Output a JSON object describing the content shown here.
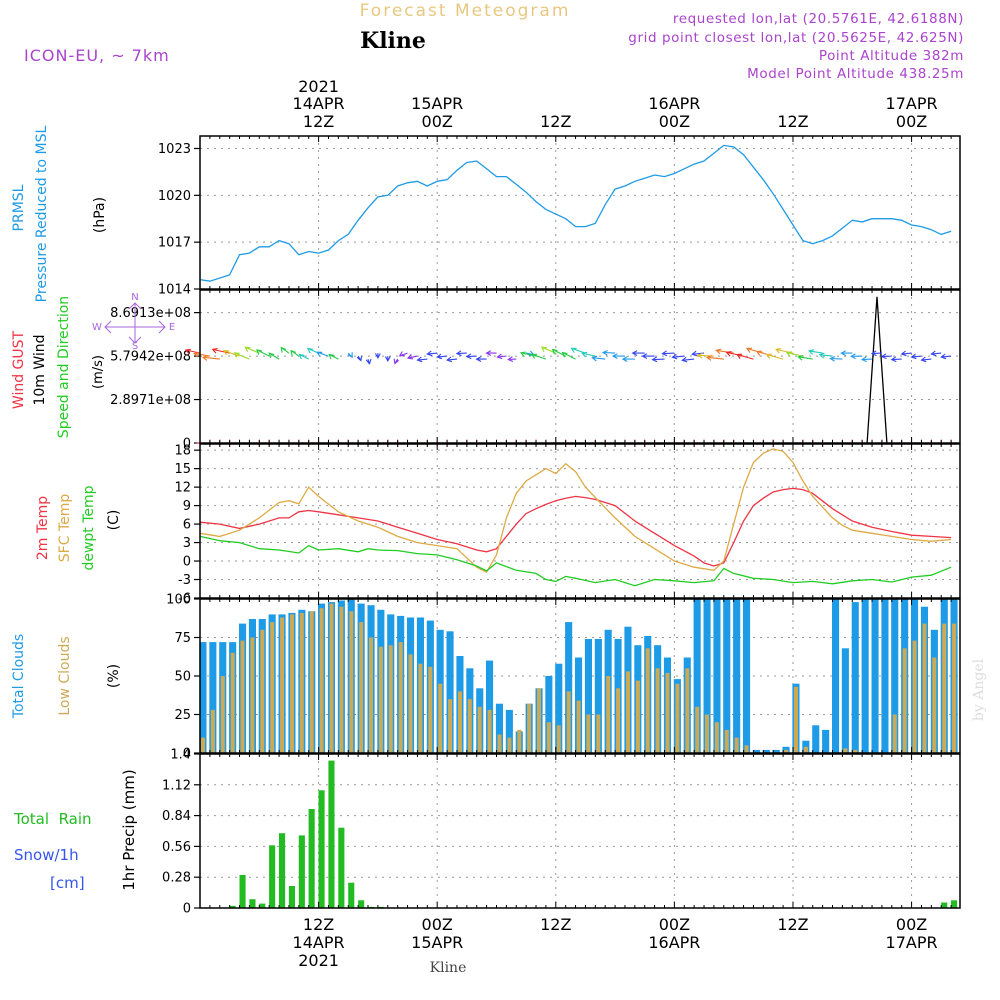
{
  "header": {
    "title": "Forecast Meteogram",
    "station": "Kline",
    "model": "ICON-EU, ~ 7km",
    "requested": "requested lon,lat (20.5761E, 42.6188N)",
    "grid_point": "grid point closest lon,lat (20.5625E, 42.625N)",
    "point_alt": "Point Altitude 382m",
    "model_alt": "Model Point Altitude 438.25m",
    "footer_station": "Kline",
    "credit": "by Angel"
  },
  "colors": {
    "pressure": "#1e9be6",
    "gust": "#ee3344",
    "wind": "#000000",
    "wind_dir": "#22cc22",
    "temp": "#ee3344",
    "sfc": "#ddaa44",
    "dewpt": "#22cc22",
    "total_clouds": "#1e9be6",
    "low_clouds": "#ccaa55",
    "rain": "#22bb22",
    "snow": "#3355ee",
    "compass": "#aa66dd",
    "header_purple": "#aa44cc",
    "title_color": "#e8c880",
    "grid": "#999999"
  },
  "time_axis": {
    "top_ticks": [
      {
        "h": 12,
        "line1": "2021",
        "line2": "14APR",
        "line3": "12Z"
      },
      {
        "h": 24,
        "line1": "",
        "line2": "15APR",
        "line3": "00Z"
      },
      {
        "h": 36,
        "line1": "",
        "line2": "",
        "line3": "12Z"
      },
      {
        "h": 48,
        "line1": "",
        "line2": "16APR",
        "line3": "00Z"
      },
      {
        "h": 60,
        "line1": "",
        "line2": "",
        "line3": "12Z"
      },
      {
        "h": 72,
        "line1": "",
        "line2": "17APR",
        "line3": "00Z"
      }
    ],
    "bottom_ticks": [
      {
        "h": 12,
        "line1": "12Z",
        "line2": "14APR",
        "line3": "2021"
      },
      {
        "h": 24,
        "line1": "00Z",
        "line2": "15APR",
        "line3": ""
      },
      {
        "h": 36,
        "line1": "12Z",
        "line2": "",
        "line3": ""
      },
      {
        "h": 48,
        "line1": "00Z",
        "line2": "16APR",
        "line3": ""
      },
      {
        "h": 60,
        "line1": "12Z",
        "line2": "",
        "line3": ""
      },
      {
        "h": 72,
        "line1": "00Z",
        "line2": "17APR",
        "line3": ""
      }
    ]
  },
  "chart_data": [
    {
      "type": "line",
      "title": "PRMSL Pressure Reduced to MSL",
      "label_line1": "PRMSL",
      "label_line2": "Pressure Reduced to MSL",
      "ylabel": "(hPa)",
      "ylim": [
        1014,
        1023.8
      ],
      "yticks": [
        1014,
        1017,
        1020,
        1023
      ],
      "x_hours_start": 0,
      "x_hours_end": 77,
      "series": [
        {
          "name": "PRMSL",
          "x": [
            0,
            1,
            3,
            4,
            5,
            6,
            7,
            8,
            9,
            10,
            11,
            12,
            13,
            14,
            15,
            16,
            17,
            18,
            19,
            20,
            21,
            22,
            23,
            24,
            25,
            26,
            27,
            28,
            29,
            30,
            31,
            32,
            33,
            34,
            35,
            36,
            37,
            38,
            39,
            40,
            41,
            42,
            43,
            44,
            45,
            46,
            47,
            48,
            49,
            50,
            51,
            52,
            53,
            54,
            55,
            56,
            57,
            58,
            59,
            60,
            61,
            62,
            63,
            64,
            65,
            66,
            67,
            68,
            69,
            70,
            71,
            72,
            73,
            74,
            75,
            76
          ],
          "values": [
            1014.6,
            1014.5,
            1014.9,
            1016.2,
            1016.3,
            1016.7,
            1016.7,
            1017.1,
            1016.9,
            1016.2,
            1016.4,
            1016.3,
            1016.5,
            1017.1,
            1017.5,
            1018.4,
            1019.2,
            1019.9,
            1020.0,
            1020.6,
            1020.8,
            1020.9,
            1020.6,
            1020.9,
            1021.0,
            1021.6,
            1022.1,
            1022.2,
            1021.7,
            1021.2,
            1021.2,
            1020.7,
            1020.2,
            1019.6,
            1019.1,
            1018.8,
            1018.5,
            1018.0,
            1018.0,
            1018.2,
            1019.4,
            1020.4,
            1020.6,
            1020.9,
            1021.1,
            1021.3,
            1021.2,
            1021.4,
            1021.7,
            1022.0,
            1022.2,
            1022.7,
            1023.2,
            1023.1,
            1022.6,
            1021.8,
            1021.0,
            1020.1,
            1019.1,
            1018.1,
            1017.1,
            1016.9,
            1017.1,
            1017.4,
            1017.9,
            1018.4,
            1018.3,
            1018.5,
            1018.5,
            1018.5,
            1018.4,
            1018.1,
            1018.0,
            1017.8,
            1017.5,
            1017.7
          ]
        }
      ]
    },
    {
      "type": "line",
      "title": "Wind GUST / 10m Wind Speed and Direction",
      "label_gust": "Wind GUST",
      "label_wind": "10m Wind",
      "label_dir": "Speed and Direction",
      "ylabel": "(m/s)",
      "ylim": [
        0,
        1020000000.0
      ],
      "ytick_labels": [
        "0",
        "2.8971e+08",
        "5.7942e+08",
        "8.6913e+08"
      ],
      "ytick_values": [
        0,
        289710000,
        579420000,
        869130000
      ],
      "compass": {
        "n": "N",
        "s": "S",
        "e": "E",
        "w": "W"
      },
      "series": [
        {
          "name": "10m Wind spike",
          "x": [
            67.5,
            68.5,
            69.5
          ],
          "values": [
            0,
            975000000,
            0
          ]
        },
        {
          "name": "Wind GUST",
          "note": "plus markers along zero line every hour",
          "value": 0
        }
      ],
      "wind_barbs_note": "wind direction arrows coloured by speed, drawn near the 5.8e+08 level"
    },
    {
      "type": "line",
      "title": "2m Temp / SFC Temp / dewpt Temp",
      "label_line1": "2m Temp",
      "label_line2": "SFC Temp",
      "label_line3": "dewpt Temp",
      "ylabel": "(C)",
      "ylim": [
        -6,
        19
      ],
      "yticks": [
        -6,
        -3,
        0,
        3,
        6,
        9,
        12,
        15,
        18
      ],
      "series": [
        {
          "name": "2m Temp",
          "x": [
            0,
            2,
            4,
            6,
            8,
            9,
            10,
            11,
            12,
            14,
            16,
            18,
            20,
            22,
            24,
            26,
            27,
            28,
            29,
            30,
            31,
            32,
            33,
            34,
            35,
            36,
            37,
            38,
            39,
            40,
            42,
            44,
            46,
            48,
            50,
            51,
            52,
            53,
            54,
            55,
            56,
            57,
            58,
            59,
            60,
            61,
            62,
            64,
            66,
            68,
            70,
            72,
            74,
            76
          ],
          "values": [
            6.3,
            6.0,
            5.3,
            6.0,
            7.0,
            7.0,
            8.0,
            8.2,
            8.0,
            7.5,
            7.0,
            6.5,
            5.5,
            4.5,
            3.5,
            2.8,
            2.3,
            1.8,
            1.5,
            2.0,
            4.0,
            6.0,
            7.7,
            8.5,
            9.2,
            9.8,
            10.2,
            10.5,
            10.3,
            10.0,
            9.0,
            6.5,
            4.5,
            2.5,
            0.8,
            -0.3,
            -0.8,
            -0.3,
            3.0,
            6.5,
            9.0,
            10.2,
            11.2,
            11.6,
            11.8,
            11.6,
            11.0,
            8.5,
            6.5,
            5.5,
            4.8,
            4.2,
            4.0,
            3.8
          ]
        },
        {
          "name": "SFC Temp",
          "x": [
            0,
            2,
            4,
            6,
            8,
            9,
            10,
            11,
            12,
            14,
            16,
            18,
            20,
            22,
            24,
            26,
            28,
            29,
            30,
            31,
            32,
            33,
            34,
            35,
            36,
            37,
            38,
            39,
            40,
            42,
            44,
            46,
            48,
            50,
            52,
            53,
            54,
            55,
            56,
            57,
            58,
            59,
            60,
            61,
            62,
            64,
            65,
            66,
            68,
            70,
            72,
            74,
            76
          ],
          "values": [
            4.5,
            4.0,
            5.0,
            7.0,
            9.5,
            9.8,
            9.3,
            12.0,
            10.5,
            8.0,
            6.5,
            5.5,
            4.0,
            3.0,
            2.5,
            2.0,
            -1.0,
            -1.8,
            1.0,
            7.0,
            11.0,
            13.0,
            14.0,
            15.0,
            14.2,
            15.8,
            14.5,
            12.0,
            10.3,
            7.0,
            4.0,
            2.0,
            0.0,
            -1.0,
            -1.5,
            0.0,
            6.0,
            12.0,
            16.0,
            17.5,
            18.2,
            17.8,
            16.0,
            13.0,
            10.5,
            7.0,
            5.8,
            5.0,
            4.5,
            4.0,
            3.5,
            3.2,
            3.5
          ]
        },
        {
          "name": "dewpt Temp",
          "x": [
            0,
            2,
            4,
            6,
            8,
            10,
            11,
            12,
            14,
            16,
            17,
            18,
            20,
            22,
            24,
            26,
            28,
            29,
            30,
            32,
            34,
            35,
            36,
            37,
            38,
            40,
            42,
            44,
            46,
            48,
            50,
            52,
            53,
            54,
            56,
            58,
            60,
            62,
            64,
            66,
            68,
            70,
            72,
            74,
            76
          ],
          "values": [
            4.0,
            3.3,
            3.0,
            2.0,
            1.8,
            1.3,
            2.5,
            1.8,
            2.0,
            1.5,
            2.0,
            1.8,
            1.7,
            1.2,
            1.0,
            0.2,
            -0.8,
            -1.6,
            -0.3,
            -1.5,
            -2.0,
            -3.0,
            -3.3,
            -2.5,
            -2.8,
            -3.5,
            -3.0,
            -4.0,
            -3.0,
            -3.2,
            -3.5,
            -3.2,
            -1.2,
            -2.0,
            -2.8,
            -3.0,
            -3.5,
            -3.3,
            -3.7,
            -3.2,
            -3.0,
            -3.4,
            -2.6,
            -2.3,
            -1.0
          ]
        }
      ]
    },
    {
      "type": "bar",
      "title": "Total Clouds / Low Clouds",
      "label_line1": "Total Clouds",
      "label_line2": "Low Clouds",
      "ylabel": "(%)",
      "ylim": [
        0,
        100
      ],
      "yticks": [
        0,
        25,
        50,
        75,
        100
      ],
      "x_hours": [
        0,
        1,
        2,
        3,
        4,
        5,
        6,
        7,
        8,
        9,
        10,
        11,
        12,
        13,
        14,
        15,
        16,
        17,
        18,
        19,
        20,
        21,
        22,
        23,
        24,
        25,
        26,
        27,
        28,
        29,
        30,
        31,
        32,
        33,
        34,
        35,
        36,
        37,
        38,
        39,
        40,
        41,
        42,
        43,
        44,
        45,
        46,
        47,
        48,
        49,
        50,
        51,
        52,
        53,
        54,
        55,
        56,
        57,
        58,
        59,
        60,
        61,
        62,
        63,
        64,
        65,
        66,
        67,
        68,
        69,
        70,
        71,
        72,
        73,
        74,
        75,
        76
      ],
      "series": [
        {
          "name": "Total Clouds",
          "values": [
            72,
            72,
            72,
            72,
            84,
            87,
            87,
            90,
            90,
            91,
            93,
            92,
            97,
            98,
            99,
            100,
            97,
            96,
            93,
            90,
            89,
            88,
            88,
            86,
            80,
            79,
            63,
            55,
            42,
            60,
            32,
            28,
            14,
            32,
            42,
            50,
            58,
            85,
            62,
            74,
            74,
            80,
            74,
            82,
            70,
            76,
            70,
            62,
            48,
            62,
            100,
            100,
            100,
            100,
            100,
            100,
            2,
            2,
            2,
            4,
            45,
            8,
            18,
            15,
            100,
            68,
            98,
            100,
            100,
            100,
            100,
            100,
            100,
            95,
            80,
            100,
            100
          ]
        },
        {
          "name": "Low Clouds",
          "values": [
            10,
            28,
            50,
            65,
            73,
            75,
            80,
            85,
            88,
            90,
            91,
            92,
            94,
            97,
            95,
            92,
            85,
            75,
            69,
            70,
            72,
            64,
            58,
            56,
            45,
            35,
            40,
            35,
            30,
            28,
            12,
            10,
            15,
            32,
            42,
            20,
            18,
            40,
            34,
            25,
            25,
            50,
            42,
            53,
            47,
            68,
            55,
            52,
            45,
            55,
            30,
            25,
            20,
            15,
            10,
            5,
            0,
            0,
            0,
            2,
            43,
            4,
            0,
            0,
            0,
            3,
            2,
            0,
            0,
            0,
            25,
            68,
            73,
            84,
            62,
            84,
            84
          ]
        }
      ]
    },
    {
      "type": "bar",
      "title": "1hr Precip",
      "label_rain": "Total  Rain",
      "label_snow": "Snow/1h",
      "label_cm": "[cm]",
      "ylabel": "1hr Precip (mm)",
      "ylim": [
        0,
        1.4
      ],
      "yticks": [
        0,
        0.28,
        0.56,
        0.84,
        1.12,
        1.4
      ],
      "ytick_labels": [
        "0",
        "0.28",
        "0.56",
        "0.84",
        "1.12",
        "1.4"
      ],
      "x_hours": [
        0,
        1,
        2,
        3,
        4,
        5,
        6,
        7,
        8,
        9,
        10,
        11,
        12,
        13,
        14,
        15,
        16,
        17,
        18,
        19,
        20,
        21,
        22,
        23,
        24,
        25,
        26,
        27,
        28,
        29,
        30,
        31,
        32,
        33,
        34,
        35,
        36,
        37,
        38,
        39,
        40,
        41,
        42,
        43,
        44,
        45,
        46,
        47,
        48,
        49,
        50,
        51,
        52,
        53,
        54,
        55,
        56,
        57,
        58,
        59,
        60,
        61,
        62,
        63,
        64,
        65,
        66,
        67,
        68,
        69,
        70,
        71,
        72,
        73,
        74,
        75,
        76
      ],
      "series": [
        {
          "name": "Rain",
          "values": [
            0,
            0,
            0,
            0.02,
            0.3,
            0.08,
            0.04,
            0.57,
            0.68,
            0.2,
            0.66,
            0.9,
            1.07,
            1.34,
            0.73,
            0.23,
            0.07,
            0.01,
            0.01,
            0,
            0,
            0,
            0,
            0,
            0,
            0,
            0,
            0,
            0,
            0,
            0,
            0,
            0,
            0,
            0,
            0,
            0,
            0,
            0,
            0,
            0,
            0,
            0,
            0,
            0,
            0,
            0,
            0,
            0,
            0,
            0,
            0,
            0,
            0,
            0,
            0,
            0,
            0,
            0,
            0,
            0,
            0,
            0,
            0,
            0,
            0,
            0,
            0,
            0,
            0,
            0,
            0,
            0,
            0,
            0,
            0.05,
            0.07
          ]
        }
      ]
    }
  ]
}
